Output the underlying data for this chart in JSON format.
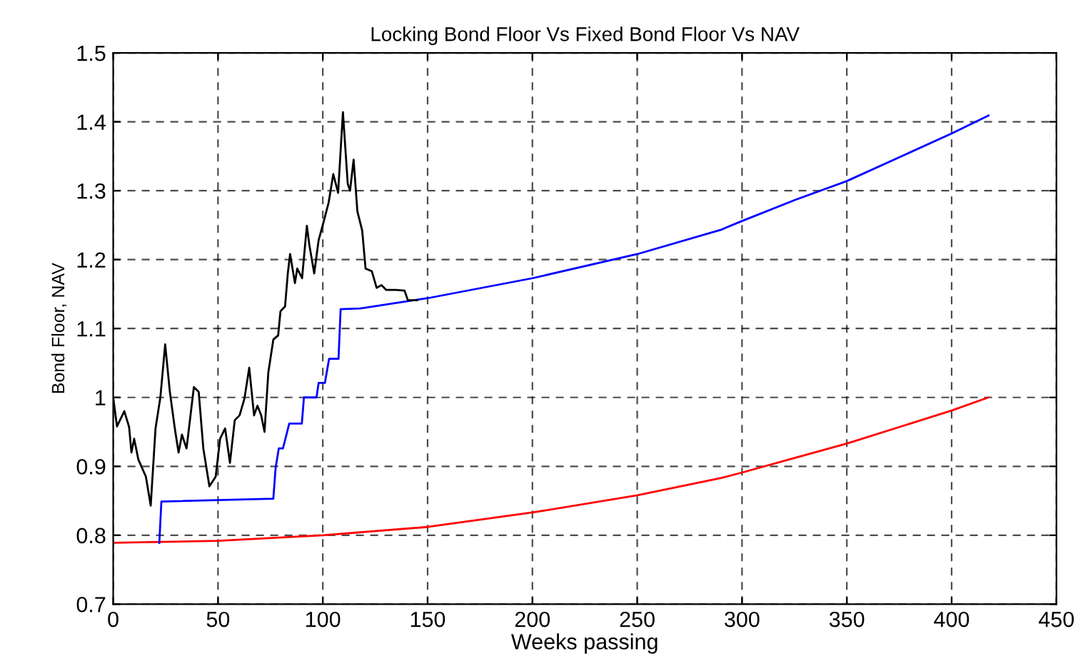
{
  "chart_data": {
    "type": "line",
    "title": "Locking Bond Floor Vs Fixed Bond Floor Vs NAV",
    "xlabel": "Weeks passing",
    "ylabel": "Bond Floor, NAV",
    "xlim": [
      0,
      450
    ],
    "xticks": [
      0,
      50,
      100,
      150,
      200,
      250,
      300,
      350,
      400,
      450
    ],
    "ylim": [
      0.7,
      1.5
    ],
    "yticks": [
      0.7,
      0.8,
      0.9,
      1,
      1.1,
      1.2,
      1.3,
      1.4,
      1.5
    ],
    "grid": true,
    "line_style": "solid",
    "marker": "none",
    "series": [
      {
        "color": "#ff0000",
        "x": [
          0,
          50,
          100,
          150,
          200,
          250,
          290,
          300,
          325,
          350,
          400,
          417.6
        ],
        "values": [
          0.789,
          0.792,
          0.8,
          0.812,
          0.833,
          0.858,
          0.883,
          0.891,
          0.912,
          0.933,
          0.981,
          1.0
        ]
      },
      {
        "color": "#0000ff",
        "x": [
          22,
          23,
          76.4,
          77.5,
          79,
          81,
          84,
          90,
          91,
          97,
          98,
          101,
          103,
          107.5,
          108.5,
          117.7,
          150,
          200,
          250,
          289.7,
          300,
          325.6,
          350,
          400,
          417.6
        ],
        "values": [
          0.789,
          0.849,
          0.853,
          0.898,
          0.926,
          0.926,
          0.962,
          0.962,
          1.0,
          1.0,
          1.021,
          1.021,
          1.056,
          1.056,
          1.128,
          1.129,
          1.144,
          1.173,
          1.208,
          1.243,
          1.256,
          1.287,
          1.314,
          1.383,
          1.409
        ]
      },
      {
        "color": "#000000",
        "x": [
          0,
          1.8,
          5.3,
          7.6,
          8.7,
          10,
          12,
          15.6,
          17.9,
          20.2,
          22.5,
          24.8,
          27,
          29.4,
          31.2,
          32.8,
          35,
          38.5,
          40.8,
          43,
          45.9,
          48.9,
          51,
          53.4,
          55.7,
          58,
          60.3,
          62.6,
          64.9,
          67.2,
          68.8,
          70.6,
          72.2,
          74,
          76.4,
          78.7,
          79.8,
          82,
          83.3,
          84.4,
          86.7,
          87.8,
          90.1,
          92.4,
          93.6,
          95.9,
          98,
          100.5,
          102.8,
          105,
          107.3,
          109.6,
          111.9,
          113,
          114.7,
          116.5,
          118.8,
          120.4,
          123.4,
          125.7,
          128,
          130.3,
          134.9,
          139,
          140.6,
          145
        ],
        "values": [
          1.0,
          0.958,
          0.98,
          0.957,
          0.92,
          0.94,
          0.91,
          0.885,
          0.843,
          0.955,
          1.0,
          1.077,
          1.009,
          0.955,
          0.92,
          0.946,
          0.926,
          1.015,
          1.008,
          0.926,
          0.871,
          0.885,
          0.94,
          0.955,
          0.905,
          0.967,
          0.974,
          0.998,
          1.043,
          0.974,
          0.988,
          0.974,
          0.95,
          1.036,
          1.084,
          1.09,
          1.125,
          1.132,
          1.18,
          1.208,
          1.166,
          1.187,
          1.173,
          1.249,
          1.221,
          1.18,
          1.228,
          1.256,
          1.283,
          1.324,
          1.297,
          1.414,
          1.31,
          1.3,
          1.345,
          1.27,
          1.242,
          1.187,
          1.183,
          1.159,
          1.163,
          1.156,
          1.156,
          1.155,
          1.141,
          1.141
        ]
      }
    ]
  }
}
